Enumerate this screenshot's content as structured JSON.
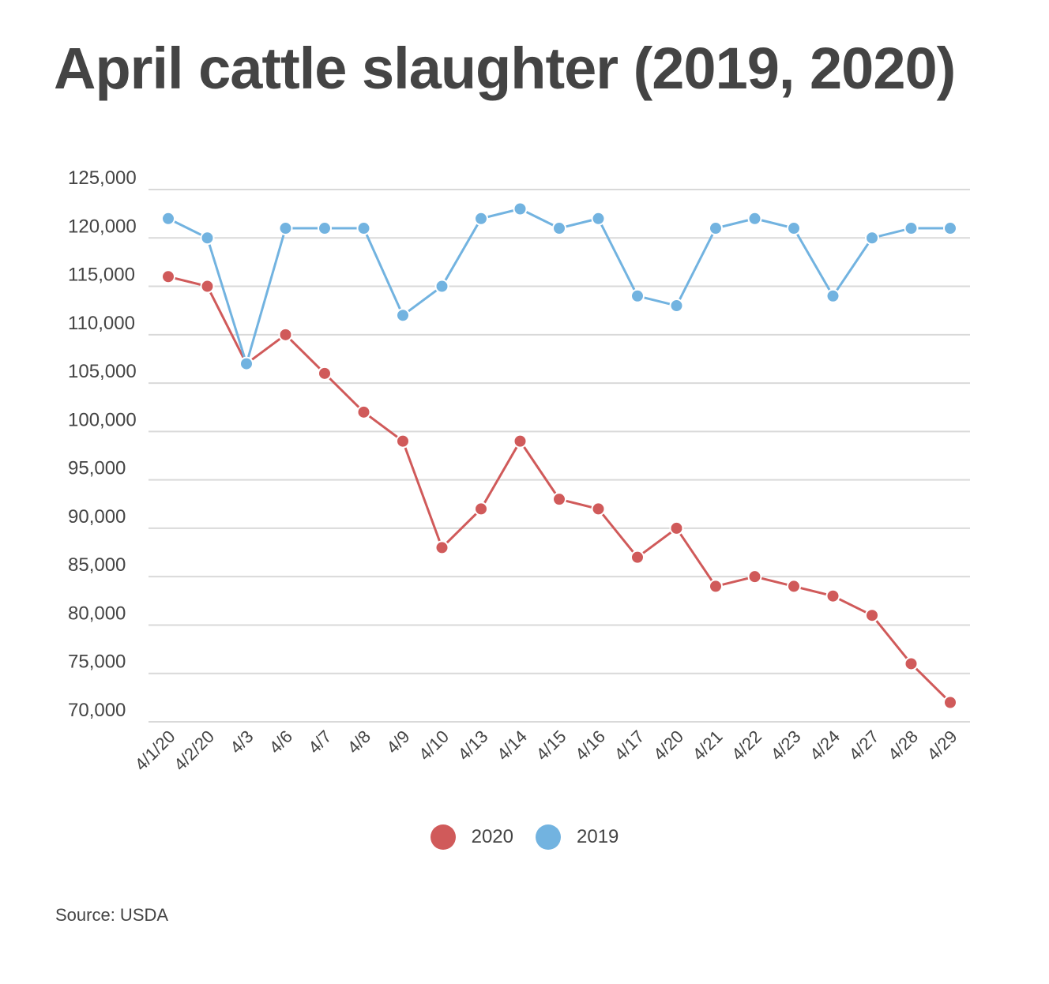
{
  "chart_data": {
    "type": "line",
    "title": "April cattle slaughter (2019, 2020)",
    "xlabel": "",
    "ylabel": "",
    "ylim": [
      70000,
      125000
    ],
    "yticks": [
      "125,000",
      "120,000",
      "115,000",
      "110,000",
      "105,000",
      "100,000",
      "95,000",
      "90,000",
      "85,000",
      "80,000",
      "75,000",
      "70,000"
    ],
    "ytick_values": [
      125000,
      120000,
      115000,
      110000,
      105000,
      100000,
      95000,
      90000,
      85000,
      80000,
      75000,
      70000
    ],
    "categories": [
      "4/1/20",
      "4/2/20",
      "4/3",
      "4/6",
      "4/7",
      "4/8",
      "4/9",
      "4/10",
      "4/13",
      "4/14",
      "4/15",
      "4/16",
      "4/17",
      "4/20",
      "4/21",
      "4/22",
      "4/23",
      "4/24",
      "4/27",
      "4/28",
      "4/29"
    ],
    "grid": true,
    "legend_position": "bottom-center",
    "series": [
      {
        "name": "2020",
        "color": "#d05a5a",
        "values": [
          116000,
          115000,
          107000,
          110000,
          106000,
          102000,
          99000,
          88000,
          92000,
          99000,
          93000,
          92000,
          87000,
          90000,
          84000,
          85000,
          84000,
          83000,
          81000,
          76000,
          72000
        ]
      },
      {
        "name": "2019",
        "color": "#72b3e0",
        "values": [
          122000,
          120000,
          107000,
          121000,
          121000,
          121000,
          112000,
          115000,
          122000,
          123000,
          121000,
          122000,
          114000,
          113000,
          121000,
          122000,
          121000,
          114000,
          120000,
          121000,
          121000
        ]
      }
    ],
    "source": "Source: USDA"
  }
}
